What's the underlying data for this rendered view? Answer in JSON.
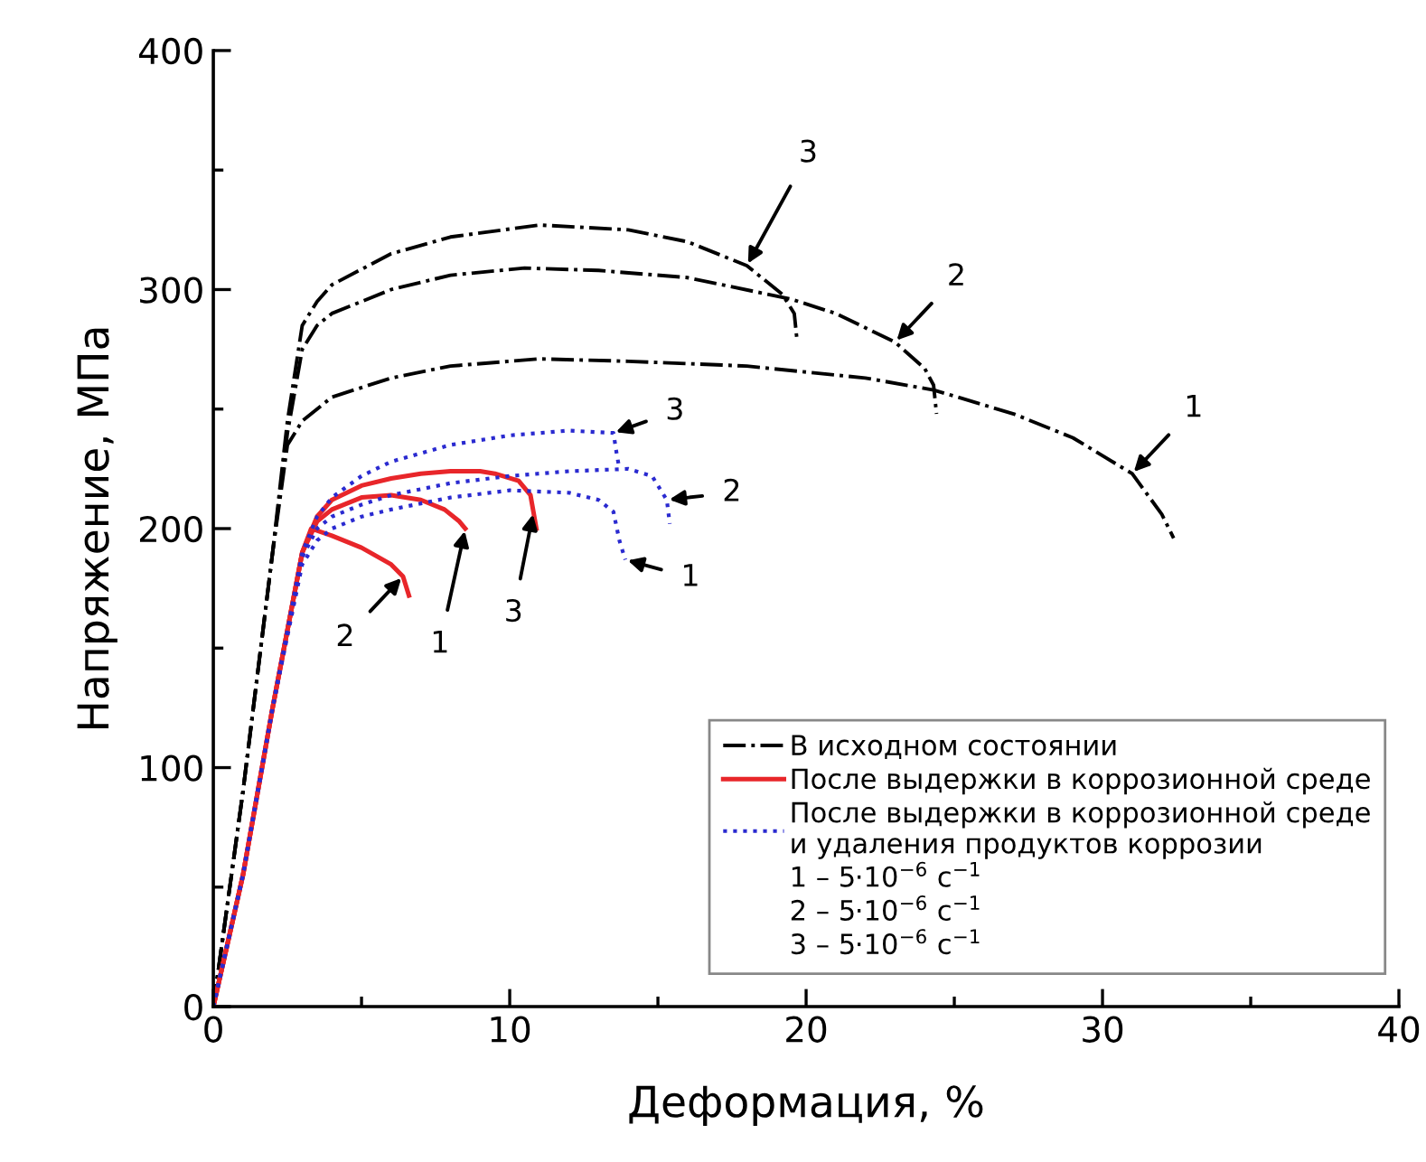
{
  "chart_data": {
    "type": "line",
    "xlabel": "Деформация, %",
    "ylabel": "Напряжение, МПа",
    "xlim": [
      0,
      40
    ],
    "xticks": [
      0,
      10,
      20,
      30,
      40
    ],
    "ylim": [
      0,
      400
    ],
    "yticks": [
      0,
      100,
      200,
      300,
      400
    ],
    "grid": false,
    "legend": "bottom right",
    "marker": "none",
    "series": [
      {
        "name": "В исходном состоянии",
        "color": "#000000",
        "line_style": "dashdot",
        "x": [
          0,
          1,
          2,
          2.5,
          3,
          4,
          6,
          8,
          11,
          14,
          18,
          22,
          24.3,
          27,
          29,
          31,
          32,
          32.4
        ],
        "values": [
          0,
          90,
          190,
          235,
          245,
          255,
          263,
          268,
          271,
          270,
          268,
          263,
          258,
          248,
          238,
          223,
          206,
          196
        ]
      },
      {
        "color": "#000000",
        "line_style": "dashdot",
        "x": [
          0,
          1,
          2,
          2.5,
          3,
          3.5,
          4,
          6,
          8,
          10.5,
          13,
          16,
          19.5,
          21,
          23,
          24,
          24.3,
          24.4
        ],
        "values": [
          0,
          90,
          190,
          240,
          275,
          285,
          290,
          300,
          306,
          309,
          308,
          305,
          296,
          290,
          278,
          267,
          260,
          248
        ]
      },
      {
        "color": "#000000",
        "line_style": "dashdot",
        "x": [
          0,
          1,
          2,
          2.5,
          3,
          3.5,
          4,
          6,
          8,
          11,
          14,
          16,
          18,
          19.2,
          19.6,
          19.7
        ],
        "values": [
          0,
          90,
          190,
          245,
          285,
          295,
          302,
          315,
          322,
          327,
          325,
          320,
          310,
          298,
          290,
          278
        ]
      },
      {
        "name": "После выдержки в коррозионной среде",
        "color": "#e8262a",
        "line_style": "solid",
        "x": [
          0,
          1,
          2,
          3,
          3.5,
          4,
          5,
          6,
          7,
          7.8,
          8.3,
          8.5
        ],
        "values": [
          0,
          55,
          125,
          190,
          203,
          208,
          213,
          214,
          212,
          208,
          203,
          200
        ]
      },
      {
        "color": "#e8262a",
        "line_style": "solid",
        "x": [
          0,
          1,
          2,
          3,
          3.3,
          4,
          5,
          6,
          6.4,
          6.6
        ],
        "values": [
          0,
          55,
          125,
          190,
          200,
          197,
          192,
          185,
          180,
          172
        ]
      },
      {
        "color": "#e8262a",
        "line_style": "solid",
        "x": [
          0,
          1,
          2,
          3,
          3.5,
          4,
          5,
          6,
          7,
          8,
          9,
          9.5,
          10.3,
          10.7,
          10.8,
          10.9
        ],
        "values": [
          0,
          55,
          125,
          190,
          205,
          212,
          218,
          221,
          223,
          224,
          224,
          223,
          220,
          214,
          207,
          200
        ]
      },
      {
        "name": "После выдержки в коррозионной среде\nи удаления продуктов коррозии",
        "color": "#2a2ad0",
        "line_style": "dotted",
        "x": [
          0,
          1,
          2,
          3,
          3.5,
          4,
          5,
          6,
          8,
          10,
          12,
          13,
          13.5,
          13.7,
          13.9
        ],
        "values": [
          0,
          55,
          125,
          185,
          195,
          200,
          205,
          208,
          213,
          216,
          215,
          212,
          207,
          195,
          187
        ]
      },
      {
        "color": "#2a2ad0",
        "line_style": "dotted",
        "x": [
          0,
          1,
          2,
          3,
          3.5,
          4,
          5,
          6,
          8,
          10,
          12,
          14,
          14.8,
          15.3,
          15.4
        ],
        "values": [
          0,
          55,
          125,
          188,
          200,
          205,
          210,
          214,
          219,
          222,
          224,
          225,
          222,
          212,
          202
        ]
      },
      {
        "color": "#2a2ad0",
        "line_style": "dotted",
        "x": [
          0,
          1,
          2,
          3,
          3.5,
          4,
          5,
          6,
          8,
          10,
          12,
          13.5,
          13.6,
          13.7
        ],
        "values": [
          0,
          55,
          125,
          190,
          205,
          213,
          222,
          228,
          235,
          239,
          241,
          240,
          232,
          225
        ]
      }
    ],
    "annotations": [
      {
        "text": "3",
        "x": 18,
        "y": 310
      },
      {
        "text": "2",
        "x": 23,
        "y": 278
      },
      {
        "text": "1",
        "x": 31,
        "y": 223
      },
      {
        "text": "3",
        "x": 13.5,
        "y": 240
      },
      {
        "text": "2",
        "x": 15.3,
        "y": 212
      },
      {
        "text": "1",
        "x": 13.9,
        "y": 187
      },
      {
        "text": "2",
        "x": 6.4,
        "y": 180
      },
      {
        "text": "1",
        "x": 8.5,
        "y": 200
      },
      {
        "text": "3",
        "x": 10.8,
        "y": 207
      },
      "1 – 5·10$^{−6}$ с$^{−1}$",
      "2 – 5·10$^{−6}$ с$^{−1}$",
      "3 – 5·10$^{−6}$ с$^{−1}$"
    ]
  }
}
